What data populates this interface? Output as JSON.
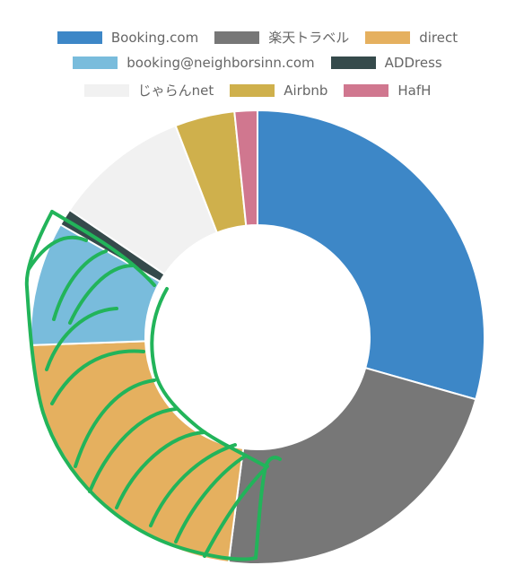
{
  "chart_data": {
    "type": "doughnut",
    "title": "",
    "legend_position": "top",
    "series": [
      {
        "name": "Booking.com",
        "value": 29.0,
        "color": "#3d87c7"
      },
      {
        "name": "楽天トラベル",
        "value": 22.3,
        "color": "#777777"
      },
      {
        "name": "direct",
        "value": 22.1,
        "color": "#e5b05f"
      },
      {
        "name": "booking@neighborsinn.com",
        "value": 8.7,
        "color": "#79bcdc"
      },
      {
        "name": "ADDress",
        "value": 1.2,
        "color": "#354a4b"
      },
      {
        "name": "じゃらんnet",
        "value": 9.5,
        "color": "#f1f1f1"
      },
      {
        "name": "Airbnb",
        "value": 4.2,
        "color": "#cfb04c"
      },
      {
        "name": "HafH",
        "value": 1.6,
        "color": "#d0778f"
      }
    ],
    "annotation": {
      "type": "freehand-hatch",
      "color": "#22b45a",
      "covers": [
        "direct",
        "booking@neighborsinn.com"
      ]
    }
  }
}
